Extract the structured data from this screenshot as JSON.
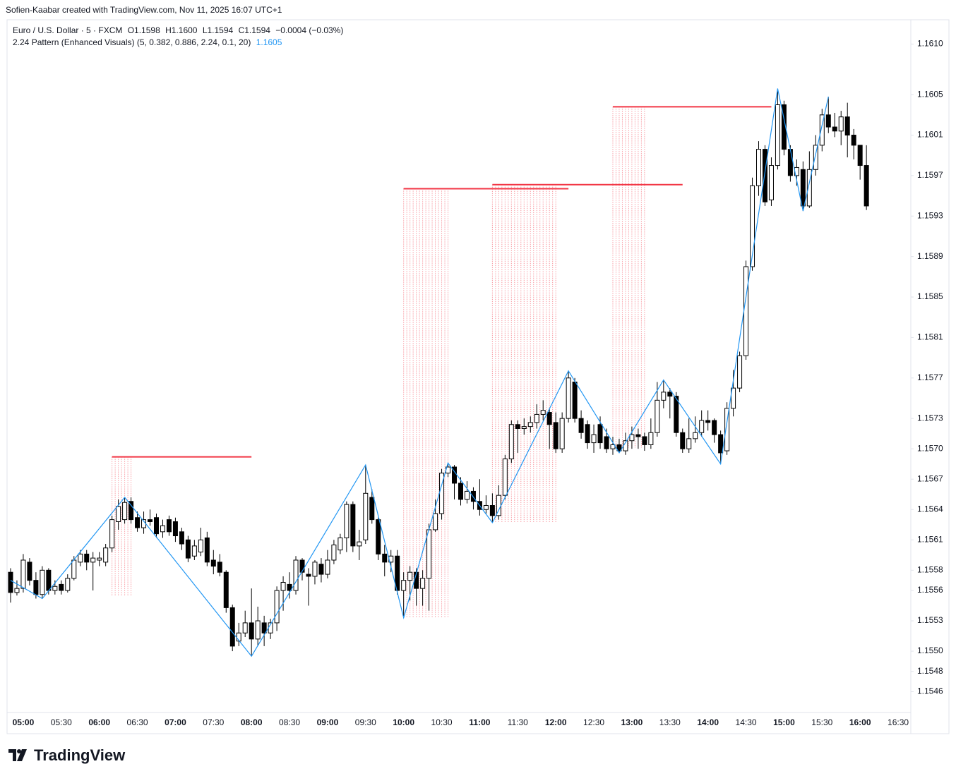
{
  "header": {
    "credit": "Sofien-Kaabar created with TradingView.com, Nov 11, 2025 16:07 UTC+1",
    "symbol": "Euro / U.S. Dollar · 5 · FXCM",
    "open": "O1.1598",
    "high": "H1.1600",
    "low": "L1.1594",
    "close": "C1.1594",
    "change": "−0.0004 (−0.03%)",
    "indicator": "2.24 Pattern (Enhanced Visuals) (5, 0.382, 0.886, 2.24, 0.1, 20)",
    "indicator_value": "1.1605"
  },
  "footer": {
    "brand": "TradingView"
  },
  "chart_data": {
    "type": "candlestick",
    "x": [
      "04:50",
      "04:55",
      "05:00",
      "05:05",
      "05:10",
      "05:15",
      "05:20",
      "05:25",
      "05:30",
      "05:35",
      "05:40",
      "05:45",
      "05:50",
      "05:55",
      "06:00",
      "06:05",
      "06:10",
      "06:15",
      "06:20",
      "06:25",
      "06:30",
      "06:35",
      "06:40",
      "06:45",
      "06:50",
      "06:55",
      "07:00",
      "07:05",
      "07:10",
      "07:15",
      "07:20",
      "07:25",
      "07:30",
      "07:35",
      "07:40",
      "07:45",
      "07:50",
      "07:55",
      "08:00",
      "08:05",
      "08:10",
      "08:15",
      "08:20",
      "08:25",
      "08:30",
      "08:35",
      "08:40",
      "08:45",
      "08:50",
      "08:55",
      "09:00",
      "09:05",
      "09:10",
      "09:15",
      "09:20",
      "09:25",
      "09:30",
      "09:35",
      "09:40",
      "09:45",
      "09:50",
      "09:55",
      "10:00",
      "10:05",
      "10:10",
      "10:15",
      "10:20",
      "10:25",
      "10:30",
      "10:35",
      "10:40",
      "10:45",
      "10:50",
      "10:55",
      "11:00",
      "11:05",
      "11:10",
      "11:15",
      "11:20",
      "11:25",
      "11:30",
      "11:35",
      "11:40",
      "11:45",
      "11:50",
      "11:55",
      "12:00",
      "12:05",
      "12:10",
      "12:15",
      "12:20",
      "12:25",
      "12:30",
      "12:35",
      "12:40",
      "12:45",
      "12:50",
      "12:55",
      "13:00",
      "13:05",
      "13:10",
      "13:15",
      "13:20",
      "13:25",
      "13:30",
      "13:35",
      "13:40",
      "13:45",
      "13:50",
      "13:55",
      "14:00",
      "14:05",
      "14:10",
      "14:15",
      "14:20",
      "14:25",
      "14:30",
      "14:35",
      "14:40",
      "14:45",
      "14:50",
      "14:55",
      "15:00",
      "15:05",
      "15:10",
      "15:15",
      "15:20",
      "15:25",
      "15:30",
      "15:35",
      "15:40",
      "15:45",
      "15:50",
      "15:55",
      "16:00",
      "16:05"
    ],
    "ohlc": [
      [
        1.15578,
        1.15582,
        1.15548,
        1.15558
      ],
      [
        1.15558,
        1.1557,
        1.15555,
        1.15562
      ],
      [
        1.15562,
        1.15596,
        1.15558,
        1.1559
      ],
      [
        1.15588,
        1.15592,
        1.15565,
        1.1557
      ],
      [
        1.1557,
        1.15578,
        1.15552,
        1.15556
      ],
      [
        1.15556,
        1.15584,
        1.15552,
        1.1558
      ],
      [
        1.1558,
        1.15582,
        1.15556,
        1.1556
      ],
      [
        1.1556,
        1.1557,
        1.15556,
        1.15564
      ],
      [
        1.15566,
        1.1557,
        1.15556,
        1.1556
      ],
      [
        1.1556,
        1.15576,
        1.15558,
        1.15572
      ],
      [
        1.15572,
        1.15594,
        1.1557,
        1.1559
      ],
      [
        1.15588,
        1.156,
        1.15584,
        1.15596
      ],
      [
        1.15596,
        1.156,
        1.1558,
        1.15588
      ],
      [
        1.15588,
        1.15598,
        1.1556,
        1.15592
      ],
      [
        1.1559,
        1.15598,
        1.15584,
        1.15592
      ],
      [
        1.15588,
        1.15606,
        1.15584,
        1.15602
      ],
      [
        1.15602,
        1.15634,
        1.15598,
        1.1563
      ],
      [
        1.15628,
        1.1565,
        1.1562,
        1.15643
      ],
      [
        1.1563,
        1.15652,
        1.15626,
        1.15647
      ],
      [
        1.15648,
        1.15652,
        1.15626,
        1.1563
      ],
      [
        1.15632,
        1.15638,
        1.15618,
        1.15622
      ],
      [
        1.15622,
        1.15638,
        1.15616,
        1.1563
      ],
      [
        1.1563,
        1.1564,
        1.15624,
        1.15628
      ],
      [
        1.15632,
        1.15636,
        1.15612,
        1.15616
      ],
      [
        1.15618,
        1.1563,
        1.15612,
        1.15624
      ],
      [
        1.1563,
        1.15634,
        1.15614,
        1.15618
      ],
      [
        1.15628,
        1.15632,
        1.15608,
        1.15614
      ],
      [
        1.15618,
        1.15622,
        1.156,
        1.15606
      ],
      [
        1.1561,
        1.15614,
        1.15588,
        1.15592
      ],
      [
        1.15594,
        1.1561,
        1.1559,
        1.15604
      ],
      [
        1.15598,
        1.15622,
        1.15594,
        1.1561
      ],
      [
        1.15612,
        1.15618,
        1.15584,
        1.15588
      ],
      [
        1.1559,
        1.156,
        1.15576,
        1.15584
      ],
      [
        1.15588,
        1.15596,
        1.15574,
        1.15578
      ],
      [
        1.15578,
        1.1558,
        1.15538,
        1.15543
      ],
      [
        1.15543,
        1.15546,
        1.155,
        1.15505
      ],
      [
        1.1551,
        1.15528,
        1.15505,
        1.15518
      ],
      [
        1.15518,
        1.1554,
        1.15514,
        1.15528
      ],
      [
        1.15528,
        1.15562,
        1.15495,
        1.15512
      ],
      [
        1.15512,
        1.15544,
        1.15505,
        1.1553
      ],
      [
        1.15528,
        1.15535,
        1.15505,
        1.15518
      ],
      [
        1.15518,
        1.15532,
        1.15512,
        1.15528
      ],
      [
        1.15528,
        1.15564,
        1.1552,
        1.1556
      ],
      [
        1.1556,
        1.15574,
        1.1554,
        1.15568
      ],
      [
        1.15566,
        1.15578,
        1.15552,
        1.1556
      ],
      [
        1.1556,
        1.15594,
        1.15556,
        1.1559
      ],
      [
        1.1559,
        1.15592,
        1.1557,
        1.15578
      ],
      [
        1.15576,
        1.15582,
        1.15545,
        1.15574
      ],
      [
        1.15574,
        1.1559,
        1.15566,
        1.15588
      ],
      [
        1.15586,
        1.15592,
        1.15568,
        1.15576
      ],
      [
        1.15576,
        1.156,
        1.15572,
        1.1559
      ],
      [
        1.1559,
        1.1561,
        1.15586,
        1.15605
      ],
      [
        1.156,
        1.15616,
        1.15596,
        1.15612
      ],
      [
        1.15612,
        1.15648,
        1.15598,
        1.15645
      ],
      [
        1.15645,
        1.15648,
        1.15598,
        1.15604
      ],
      [
        1.15604,
        1.1562,
        1.1559,
        1.15608
      ],
      [
        1.1561,
        1.15684,
        1.15606,
        1.15656
      ],
      [
        1.15652,
        1.1566,
        1.15626,
        1.1563
      ],
      [
        1.1563,
        1.15632,
        1.1559,
        1.15596
      ],
      [
        1.15596,
        1.15605,
        1.15574,
        1.15588
      ],
      [
        1.15588,
        1.156,
        1.15578,
        1.15594
      ],
      [
        1.15594,
        1.156,
        1.15556,
        1.1556
      ],
      [
        1.1556,
        1.15578,
        1.15533,
        1.1557
      ],
      [
        1.1557,
        1.15584,
        1.1555,
        1.15578
      ],
      [
        1.15578,
        1.15582,
        1.15545,
        1.15562
      ],
      [
        1.15562,
        1.1558,
        1.15545,
        1.15572
      ],
      [
        1.15572,
        1.15626,
        1.1554,
        1.1562
      ],
      [
        1.1562,
        1.1565,
        1.15618,
        1.15636
      ],
      [
        1.15636,
        1.1568,
        1.1563,
        1.15676
      ],
      [
        1.15676,
        1.15686,
        1.15672,
        1.15682
      ],
      [
        1.15682,
        1.15684,
        1.1565,
        1.15666
      ],
      [
        1.15666,
        1.15672,
        1.15644,
        1.1565
      ],
      [
        1.1565,
        1.15668,
        1.15646,
        1.15658
      ],
      [
        1.15658,
        1.15662,
        1.1564,
        1.15648
      ],
      [
        1.15648,
        1.1567,
        1.15634,
        1.1564
      ],
      [
        1.1564,
        1.15654,
        1.15636,
        1.15644
      ],
      [
        1.15644,
        1.15656,
        1.15627,
        1.15634
      ],
      [
        1.15634,
        1.15664,
        1.1563,
        1.15654
      ],
      [
        1.15654,
        1.15694,
        1.1565,
        1.1569
      ],
      [
        1.1569,
        1.15728,
        1.15686,
        1.15724
      ],
      [
        1.15724,
        1.15728,
        1.15696,
        1.1572
      ],
      [
        1.1572,
        1.1573,
        1.15714,
        1.15722
      ],
      [
        1.15722,
        1.15732,
        1.15716,
        1.15726
      ],
      [
        1.15726,
        1.15744,
        1.1572,
        1.15734
      ],
      [
        1.15734,
        1.15748,
        1.15728,
        1.15738
      ],
      [
        1.15736,
        1.1574,
        1.157,
        1.15724
      ],
      [
        1.15726,
        1.15736,
        1.15696,
        1.157
      ],
      [
        1.157,
        1.15736,
        1.15696,
        1.1573
      ],
      [
        1.1573,
        1.15777,
        1.15726,
        1.1577
      ],
      [
        1.15766,
        1.1577,
        1.15726,
        1.1573
      ],
      [
        1.1573,
        1.15738,
        1.1571,
        1.15716
      ],
      [
        1.15724,
        1.15728,
        1.157,
        1.15706
      ],
      [
        1.15706,
        1.15724,
        1.15696,
        1.15714
      ],
      [
        1.15724,
        1.15732,
        1.157,
        1.15706
      ],
      [
        1.15712,
        1.1572,
        1.15696,
        1.157
      ],
      [
        1.157,
        1.15712,
        1.15694,
        1.15704
      ],
      [
        1.15704,
        1.1571,
        1.15696,
        1.15698
      ],
      [
        1.15698,
        1.15716,
        1.15694,
        1.15708
      ],
      [
        1.15708,
        1.15722,
        1.157,
        1.15714
      ],
      [
        1.15714,
        1.1572,
        1.157,
        1.15712
      ],
      [
        1.15712,
        1.15716,
        1.15698,
        1.15704
      ],
      [
        1.15704,
        1.1573,
        1.157,
        1.15716
      ],
      [
        1.15716,
        1.15766,
        1.15712,
        1.15748
      ],
      [
        1.15748,
        1.15768,
        1.1574,
        1.15756
      ],
      [
        1.15756,
        1.1576,
        1.1573,
        1.15752
      ],
      [
        1.15752,
        1.15756,
        1.15712,
        1.15716
      ],
      [
        1.15716,
        1.1572,
        1.15696,
        1.157
      ],
      [
        1.157,
        1.1573,
        1.15696,
        1.1571
      ],
      [
        1.1571,
        1.15732,
        1.15706,
        1.15716
      ],
      [
        1.15716,
        1.15738,
        1.15712,
        1.15728
      ],
      [
        1.15728,
        1.15738,
        1.15718,
        1.15726
      ],
      [
        1.15728,
        1.1573,
        1.15706,
        1.15714
      ],
      [
        1.15714,
        1.15718,
        1.15685,
        1.15696
      ],
      [
        1.15698,
        1.15746,
        1.15694,
        1.1574
      ],
      [
        1.1574,
        1.15778,
        1.15732,
        1.1576
      ],
      [
        1.1576,
        1.15796,
        1.15756,
        1.15792
      ],
      [
        1.15792,
        1.15886,
        1.15788,
        1.1588
      ],
      [
        1.1588,
        1.15968,
        1.15876,
        1.1596
      ],
      [
        1.1596,
        1.16004,
        1.1595,
        1.15996
      ],
      [
        1.15996,
        1.16,
        1.1594,
        1.15944
      ],
      [
        1.15946,
        1.15988,
        1.1594,
        1.1598
      ],
      [
        1.1598,
        1.16056,
        1.15976,
        1.1604
      ],
      [
        1.1604,
        1.16044,
        1.1599,
        1.15996
      ],
      [
        1.15996,
        1.16,
        1.15964,
        1.1597
      ],
      [
        1.1597,
        1.15986,
        1.1596,
        1.15978
      ],
      [
        1.15976,
        1.15984,
        1.15935,
        1.1594
      ],
      [
        1.1594,
        1.15994,
        1.15938,
        1.15976
      ],
      [
        1.15976,
        1.1601,
        1.1597,
        1.16
      ],
      [
        1.16,
        1.16036,
        1.15994,
        1.1603
      ],
      [
        1.1603,
        1.16048,
        1.16012,
        1.16018
      ],
      [
        1.16018,
        1.16032,
        1.16008,
        1.16014
      ],
      [
        1.16014,
        1.16034,
        1.16,
        1.16028
      ],
      [
        1.16028,
        1.16042,
        1.15988,
        1.1601
      ],
      [
        1.1601,
        1.16016,
        1.15986,
        1.16
      ],
      [
        1.16,
        1.16,
        1.15966,
        1.1598
      ],
      [
        1.1598,
        1.16,
        1.15936,
        1.1594
      ]
    ],
    "up_color": "#ffffff",
    "down_color": "#000000",
    "zigzag": {
      "color": "#2196f3",
      "x": [
        "04:50",
        "05:15",
        "06:20",
        "08:00",
        "09:30",
        "10:00",
        "10:35",
        "11:10",
        "12:10",
        "12:50",
        "13:25",
        "14:10",
        "14:55",
        "15:15",
        "15:35"
      ],
      "values": [
        1.1557,
        1.15552,
        1.15652,
        1.15495,
        1.15684,
        1.15533,
        1.15686,
        1.15627,
        1.15777,
        1.15696,
        1.15768,
        1.15685,
        1.16056,
        1.15935,
        1.16048
      ]
    },
    "level_color": "#f23645",
    "levels": [
      {
        "start": "06:10",
        "end": "08:00",
        "value": 1.15692,
        "low": 1.15554,
        "zone": [
          "06:10",
          "06:25"
        ]
      },
      {
        "start": "10:00",
        "end": "12:10",
        "value": 1.15957,
        "low": 1.15533,
        "zone": [
          "10:00",
          "10:35"
        ]
      },
      {
        "start": "11:10",
        "end": "13:40",
        "value": 1.15961,
        "low": 1.15627,
        "zone": [
          "11:10",
          "12:00"
        ]
      },
      {
        "start": "12:45",
        "end": "14:50",
        "value": 1.16038,
        "low": 1.15701,
        "zone": [
          "12:45",
          "13:10"
        ]
      }
    ],
    "xlim": [
      "04:45",
      "16:40"
    ],
    "xticks": [
      "05:00",
      "05:30",
      "06:00",
      "06:30",
      "07:00",
      "07:30",
      "08:00",
      "08:30",
      "09:00",
      "09:30",
      "10:00",
      "10:30",
      "11:00",
      "11:30",
      "12:00",
      "12:30",
      "13:00",
      "13:30",
      "14:00",
      "14:30",
      "15:00",
      "15:30",
      "16:00",
      "16:30"
    ],
    "ylim": [
      1.15438,
      1.16124
    ],
    "yticks": [
      {
        "value": 1.161,
        "label": "1.1610"
      },
      1.1605,
      1.1601,
      1.1597,
      1.1593,
      1.1589,
      1.1585,
      1.1581,
      1.1577,
      1.1573,
      {
        "value": 1.157,
        "label": "1.1570"
      },
      1.1567,
      1.1564,
      1.1561,
      1.1558,
      1.1556,
      1.1553,
      {
        "value": 1.155,
        "label": "1.1550"
      },
      1.1548,
      1.1546
    ],
    "grid": false
  }
}
